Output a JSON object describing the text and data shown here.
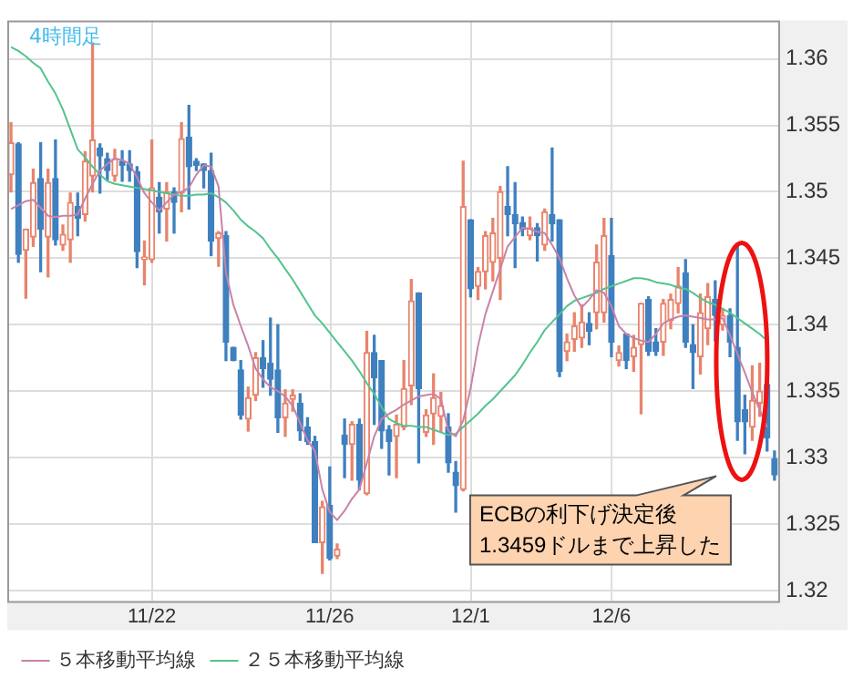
{
  "chart_data": {
    "type": "candlestick",
    "annotations": [
      "4時間足",
      "ECBの利下げ決定後\n1.3459ドルまで上昇した"
    ],
    "categories": [
      null,
      null,
      null,
      null,
      null,
      null,
      null,
      null,
      null,
      null,
      null,
      null,
      null,
      null,
      null,
      null,
      null,
      null,
      null,
      "11/22",
      null,
      null,
      null,
      null,
      null,
      null,
      null,
      null,
      null,
      null,
      null,
      null,
      null,
      null,
      null,
      null,
      null,
      null,
      null,
      null,
      null,
      null,
      null,
      "11/26",
      null,
      null,
      null,
      null,
      null,
      null,
      null,
      null,
      null,
      null,
      null,
      null,
      null,
      null,
      null,
      null,
      null,
      null,
      "12/1",
      null,
      null,
      null,
      null,
      null,
      null,
      null,
      null,
      null,
      null,
      null,
      null,
      null,
      null,
      null,
      null,
      null,
      null,
      "12/6",
      null,
      null,
      null,
      null,
      null,
      null,
      null,
      null,
      null,
      null,
      null,
      null,
      null,
      null,
      null,
      null,
      null,
      null,
      null,
      null,
      null,
      null
    ],
    "ohlc": [
      [
        1.3513,
        1.3552,
        1.35,
        1.3537
      ],
      [
        1.3536,
        1.3537,
        1.3447,
        1.3453
      ],
      [
        1.3456,
        1.3472,
        1.342,
        1.3472
      ],
      [
        1.3466,
        1.3517,
        1.3459,
        1.3507
      ],
      [
        1.351,
        1.3537,
        1.344,
        1.3472
      ],
      [
        1.3466,
        1.3517,
        1.3436,
        1.3507
      ],
      [
        1.351,
        1.3539,
        1.346,
        1.3464
      ],
      [
        1.346,
        1.3475,
        1.3456,
        1.3468
      ],
      [
        1.3464,
        1.3499,
        1.3447,
        1.3492
      ],
      [
        1.3489,
        1.3499,
        1.3467,
        1.348
      ],
      [
        1.3483,
        1.353,
        1.3478,
        1.3523
      ],
      [
        1.3512,
        1.3612,
        1.35,
        1.3539
      ],
      [
        1.3533,
        1.3536,
        1.3499,
        1.3527
      ],
      [
        1.3525,
        1.3529,
        1.3509,
        1.3516
      ],
      [
        1.3512,
        1.3532,
        1.3508,
        1.3525
      ],
      [
        1.3523,
        1.3531,
        1.3508,
        1.352
      ],
      [
        1.3521,
        1.3531,
        1.3508,
        1.3516
      ],
      [
        1.3515,
        1.3519,
        1.3443,
        1.3455
      ],
      [
        1.3449,
        1.3463,
        1.343,
        1.3451
      ],
      [
        1.3449,
        1.3539,
        1.3447,
        1.3503
      ],
      [
        1.3496,
        1.3507,
        1.3469,
        1.3485
      ],
      [
        1.3487,
        1.3507,
        1.3463,
        1.35
      ],
      [
        1.35,
        1.3503,
        1.3469,
        1.3492
      ],
      [
        1.3499,
        1.3552,
        1.3485,
        1.354
      ],
      [
        1.3541,
        1.3565,
        1.3487,
        1.3519
      ],
      [
        1.3523,
        1.3525,
        1.3516,
        1.352
      ],
      [
        1.3521,
        1.3521,
        1.3503,
        1.3516
      ],
      [
        1.3516,
        1.3529,
        1.3452,
        1.3463
      ],
      [
        1.3465,
        1.347,
        1.3444,
        1.3469
      ],
      [
        1.3467,
        1.347,
        1.3373,
        1.3387
      ],
      [
        1.3383,
        1.3383,
        1.3373,
        1.3373
      ],
      [
        1.3366,
        1.3373,
        1.3329,
        1.3332
      ],
      [
        1.3329,
        1.3353,
        1.332,
        1.3345
      ],
      [
        1.3347,
        1.3379,
        1.3343,
        1.3375
      ],
      [
        1.3375,
        1.3388,
        1.3353,
        1.3367
      ],
      [
        1.3371,
        1.3405,
        1.3347,
        1.3359
      ],
      [
        1.3366,
        1.34,
        1.3319,
        1.333
      ],
      [
        1.333,
        1.3351,
        1.3316,
        1.3341
      ],
      [
        1.3344,
        1.3351,
        1.3335,
        1.3347
      ],
      [
        1.3341,
        1.3348,
        1.3313,
        1.332
      ],
      [
        1.3323,
        1.333,
        1.331,
        1.3312
      ],
      [
        1.3312,
        1.3316,
        1.3236,
        1.3236
      ],
      [
        1.3236,
        1.3267,
        1.3213,
        1.3263
      ],
      [
        1.3264,
        1.3293,
        1.3223,
        1.3224
      ],
      [
        1.3226,
        1.3235,
        1.3224,
        1.3231
      ],
      [
        1.3317,
        1.3329,
        1.3285,
        1.331
      ],
      [
        1.331,
        1.3327,
        1.3283,
        1.3325
      ],
      [
        1.3325,
        1.3329,
        1.3276,
        1.3283
      ],
      [
        1.3273,
        1.3395,
        1.3272,
        1.3379
      ],
      [
        1.3379,
        1.3392,
        1.3325,
        1.336
      ],
      [
        1.3373,
        1.3373,
        1.3307,
        1.332
      ],
      [
        1.3321,
        1.3324,
        1.3287,
        1.3312
      ],
      [
        1.3316,
        1.3332,
        1.3285,
        1.3325
      ],
      [
        1.3323,
        1.3373,
        1.3321,
        1.3352
      ],
      [
        1.3354,
        1.3434,
        1.334,
        1.3418
      ],
      [
        1.3424,
        1.3424,
        1.3296,
        1.3352
      ],
      [
        1.3319,
        1.3336,
        1.3316,
        1.3332
      ],
      [
        1.3333,
        1.3363,
        1.331,
        1.3345
      ],
      [
        1.3331,
        1.3349,
        1.3319,
        1.3339
      ],
      [
        1.3323,
        1.3333,
        1.3289,
        1.3296
      ],
      [
        1.3289,
        1.3297,
        1.3259,
        1.3279
      ],
      [
        1.3276,
        1.3523,
        1.3275,
        1.3489
      ],
      [
        1.3479,
        1.3479,
        1.3421,
        1.3427
      ],
      [
        1.3429,
        1.3443,
        1.3419,
        1.344
      ],
      [
        1.344,
        1.347,
        1.3427,
        1.3467
      ],
      [
        1.3447,
        1.348,
        1.3433,
        1.3469
      ],
      [
        1.345,
        1.3504,
        1.3419,
        1.35
      ],
      [
        1.3489,
        1.3519,
        1.3467,
        1.3483
      ],
      [
        1.3483,
        1.3507,
        1.3443,
        1.3476
      ],
      [
        1.3477,
        1.3481,
        1.3467,
        1.3472
      ],
      [
        1.3467,
        1.3481,
        1.3464,
        1.3473
      ],
      [
        1.3473,
        1.3476,
        1.3448,
        1.3467
      ],
      [
        1.346,
        1.3487,
        1.3456,
        1.3485
      ],
      [
        1.3483,
        1.3533,
        1.3463,
        1.3476
      ],
      [
        1.3479,
        1.3479,
        1.3361,
        1.3365
      ],
      [
        1.338,
        1.3393,
        1.3373,
        1.3387
      ],
      [
        1.3389,
        1.3409,
        1.338,
        1.3399
      ],
      [
        1.339,
        1.3415,
        1.3383,
        1.3402
      ],
      [
        1.3401,
        1.3409,
        1.3385,
        1.3395
      ],
      [
        1.3409,
        1.346,
        1.3397,
        1.3447
      ],
      [
        1.3409,
        1.348,
        1.3402,
        1.3467
      ],
      [
        1.3452,
        1.348,
        1.3376,
        1.3387
      ],
      [
        1.3373,
        1.3384,
        1.3369,
        1.3379
      ],
      [
        1.3393,
        1.3393,
        1.3367,
        1.3373
      ],
      [
        1.3376,
        1.3392,
        1.3365,
        1.3383
      ],
      [
        1.3385,
        1.3416,
        1.3333,
        1.3416
      ],
      [
        1.3419,
        1.3421,
        1.3377,
        1.338
      ],
      [
        1.3387,
        1.3397,
        1.3377,
        1.338
      ],
      [
        1.3387,
        1.3419,
        1.3377,
        1.3416
      ],
      [
        1.3403,
        1.3423,
        1.3397,
        1.3419
      ],
      [
        1.3416,
        1.3443,
        1.3409,
        1.3429
      ],
      [
        1.3439,
        1.3449,
        1.3383,
        1.3387
      ],
      [
        1.3385,
        1.34,
        1.3352,
        1.3379
      ],
      [
        1.3376,
        1.3423,
        1.3363,
        1.3409
      ],
      [
        1.3397,
        1.3431,
        1.3385,
        1.3421
      ],
      [
        1.3419,
        1.3433,
        1.3388,
        1.3407
      ],
      [
        1.34,
        1.3412,
        1.3396,
        1.3407
      ],
      [
        1.3407,
        1.3412,
        1.3376,
        1.3387
      ],
      [
        1.3383,
        1.3459,
        1.3313,
        1.3327
      ],
      [
        1.3336,
        1.3347,
        1.3303,
        1.3327
      ],
      [
        1.3323,
        1.3369,
        1.3313,
        1.3343
      ],
      [
        1.3341,
        1.3371,
        1.3331,
        1.335
      ],
      [
        1.3355,
        1.3357,
        1.3305,
        1.3315
      ],
      [
        1.3299,
        1.3305,
        1.3283,
        1.3287
      ]
    ],
    "colors": [
      "#e8846c",
      "#3f80bf",
      "#e8846c",
      "#e8846c",
      "#3f80bf",
      "#e8846c",
      "#3f80bf",
      "#e8846c",
      "#e8846c",
      "#3f80bf",
      "#e8846c",
      "#e8846c",
      "#3f80bf",
      "#3f80bf",
      "#e8846c",
      "#3f80bf",
      "#3f80bf",
      "#3f80bf",
      "#e8846c",
      "#e8846c",
      "#3f80bf",
      "#e8846c",
      "#3f80bf",
      "#e8846c",
      "#3f80bf",
      "#3f80bf",
      "#3f80bf",
      "#3f80bf",
      "#e8846c",
      "#3f80bf",
      "#3f80bf",
      "#3f80bf",
      "#e8846c",
      "#e8846c",
      "#3f80bf",
      "#3f80bf",
      "#3f80bf",
      "#e8846c",
      "#e8846c",
      "#3f80bf",
      "#3f80bf",
      "#3f80bf",
      "#e8846c",
      "#3f80bf",
      "#e8846c",
      "#3f80bf",
      "#e8846c",
      "#3f80bf",
      "#e8846c",
      "#3f80bf",
      "#3f80bf",
      "#3f80bf",
      "#e8846c",
      "#e8846c",
      "#e8846c",
      "#3f80bf",
      "#e8846c",
      "#e8846c",
      "#e8846c",
      "#3f80bf",
      "#3f80bf",
      "#e8846c",
      "#3f80bf",
      "#e8846c",
      "#e8846c",
      "#e8846c",
      "#e8846c",
      "#3f80bf",
      "#3f80bf",
      "#3f80bf",
      "#e8846c",
      "#3f80bf",
      "#e8846c",
      "#3f80bf",
      "#3f80bf",
      "#e8846c",
      "#e8846c",
      "#e8846c",
      "#3f80bf",
      "#e8846c",
      "#e8846c",
      "#3f80bf",
      "#e8846c",
      "#3f80bf",
      "#e8846c",
      "#e8846c",
      "#3f80bf",
      "#3f80bf",
      "#e8846c",
      "#e8846c",
      "#e8846c",
      "#3f80bf",
      "#3f80bf",
      "#e8846c",
      "#e8846c",
      "#3f80bf",
      "#e8846c",
      "#3f80bf",
      "#3f80bf",
      "#3f80bf",
      "#e8846c",
      "#e8846c",
      "#3f80bf",
      "#3f80bf"
    ],
    "series": [
      {
        "name": "５本移動平均線",
        "type": "line",
        "color": "#c982a8",
        "values": [
          1.3487,
          1.349,
          1.3493,
          1.3494,
          1.3488,
          1.3482,
          1.3481,
          1.3482,
          1.3482,
          1.3483,
          1.3495,
          1.3506,
          1.3516,
          1.3521,
          1.3525,
          1.3524,
          1.3521,
          1.3511,
          1.3499,
          1.3492,
          1.3486,
          1.3492,
          1.3498,
          1.35,
          1.3503,
          1.3513,
          1.352,
          1.3519,
          1.3504,
          1.3439,
          1.3415,
          1.3399,
          1.3384,
          1.3367,
          1.3359,
          1.3353,
          1.335,
          1.3346,
          1.3339,
          1.3326,
          1.3313,
          1.3305,
          1.3276,
          1.3259,
          1.3253,
          1.326,
          1.3269,
          1.3276,
          1.3296,
          1.3316,
          1.3329,
          1.3333,
          1.3336,
          1.334,
          1.3343,
          1.3346,
          1.3347,
          1.3348,
          1.3344,
          1.332,
          1.3316,
          1.3328,
          1.3352,
          1.3384,
          1.3408,
          1.3425,
          1.3442,
          1.3459,
          1.3466,
          1.3473,
          1.3472,
          1.347,
          1.3469,
          1.346,
          1.345,
          1.3435,
          1.3422,
          1.3413,
          1.3419,
          1.3426,
          1.3424,
          1.3414,
          1.3399,
          1.3393,
          1.339,
          1.3388,
          1.3387,
          1.3393,
          1.3401,
          1.3404,
          1.3406,
          1.3407,
          1.3406,
          1.3405,
          1.3404,
          1.3404,
          1.3405,
          1.3392,
          1.3378,
          1.3364,
          1.3349,
          1.3336,
          1.3323,
          null
        ]
      },
      {
        "name": "２５本移動平均線",
        "type": "line",
        "color": "#52c48e",
        "values": [
          1.3609,
          1.3606,
          1.3602,
          1.3597,
          1.3593,
          1.3583,
          1.3574,
          1.3562,
          1.3547,
          1.3532,
          1.3526,
          1.3519,
          1.3513,
          1.3508,
          1.3506,
          1.3505,
          1.3504,
          1.3503,
          1.3502,
          1.3501,
          1.35,
          1.3499,
          1.3498,
          1.3497,
          1.3497,
          1.3498,
          1.3498,
          1.3499,
          1.3496,
          1.3492,
          1.3486,
          1.3479,
          1.3474,
          1.347,
          1.3465,
          1.3457,
          1.345,
          1.3442,
          1.3434,
          1.3425,
          1.3416,
          1.3407,
          1.3401,
          1.3394,
          1.3387,
          1.338,
          1.3373,
          1.3365,
          1.3356,
          1.3348,
          1.3338,
          1.3329,
          1.3326,
          1.3324,
          1.3324,
          1.3323,
          1.3323,
          1.3321,
          1.3319,
          1.3317,
          1.3318,
          1.3323,
          1.3328,
          1.3333,
          1.3339,
          1.3344,
          1.335,
          1.3356,
          1.3362,
          1.337,
          1.3379,
          1.3387,
          1.3396,
          1.3402,
          1.3408,
          1.3414,
          1.3418,
          1.342,
          1.3422,
          1.3424,
          1.3427,
          1.3429,
          1.3431,
          1.3433,
          1.3435,
          1.3435,
          1.3434,
          1.3432,
          1.3431,
          1.343,
          1.3428,
          1.3427,
          1.3424,
          1.342,
          1.3417,
          1.3415,
          1.3412,
          1.3409,
          1.3405,
          1.3401,
          1.3397,
          1.3393,
          1.3388,
          null
        ]
      }
    ],
    "ylim": [
      1.3192,
      1.3629
    ],
    "yticks": [
      1.32,
      1.325,
      1.33,
      1.335,
      1.34,
      1.345,
      1.35,
      1.355,
      1.36
    ],
    "grid": true,
    "legend": "bottom left",
    "marker": "none",
    "line_style": "solid"
  }
}
